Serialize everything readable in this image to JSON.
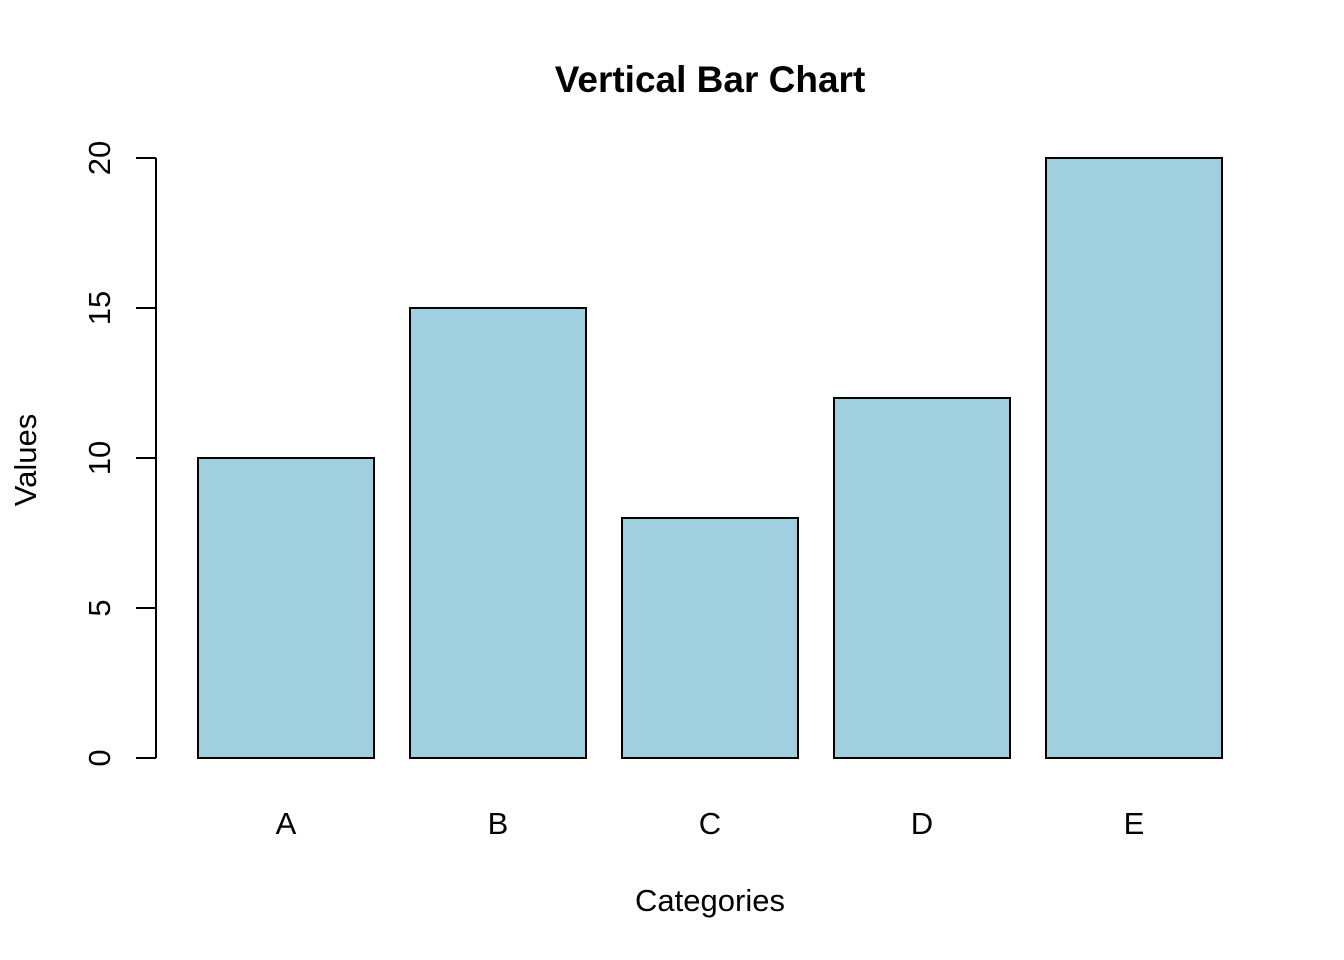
{
  "chart_data": {
    "type": "bar",
    "title": "Vertical Bar Chart",
    "xlabel": "Categories",
    "ylabel": "Values",
    "categories": [
      "A",
      "B",
      "C",
      "D",
      "E"
    ],
    "values": [
      10,
      15,
      8,
      12,
      20
    ],
    "ylim": [
      0,
      20
    ],
    "yticks": [
      0,
      5,
      10,
      15,
      20
    ],
    "grid": false,
    "legend": "none",
    "bar_color": "#A0CFE0",
    "bar_border_color": "#000000"
  }
}
